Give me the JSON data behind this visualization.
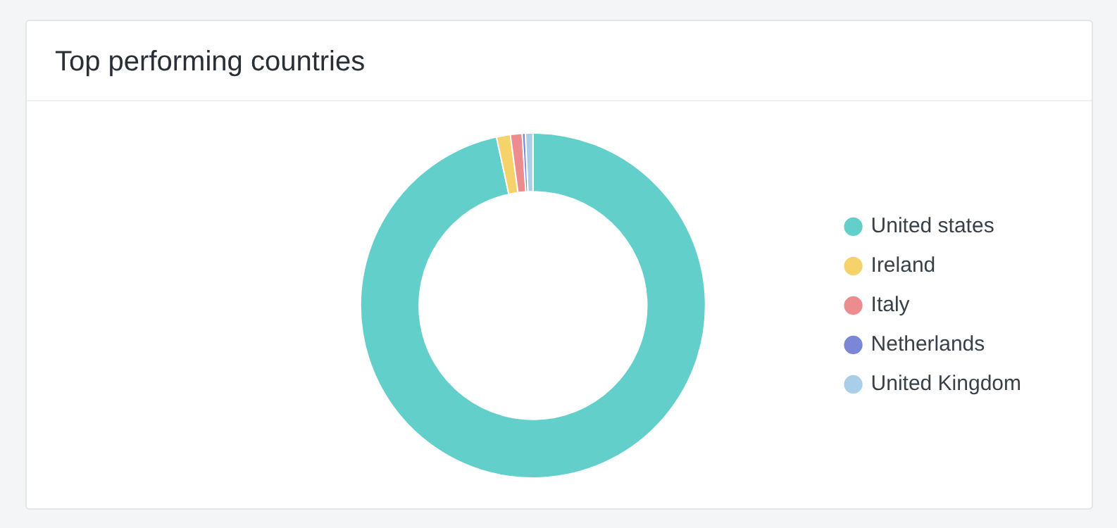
{
  "chart_data": {
    "type": "donut",
    "title": "Top performing countries",
    "categories": [
      "United states",
      "Ireland",
      "Italy",
      "Netherlands",
      "United Kingdom"
    ],
    "values": [
      96.6,
      1.3,
      1.1,
      0.3,
      0.7
    ],
    "colors": [
      "#63cfcb",
      "#f5d36a",
      "#ec8c8e",
      "#7c86d6",
      "#a9cfe8"
    ],
    "legend": "right"
  }
}
